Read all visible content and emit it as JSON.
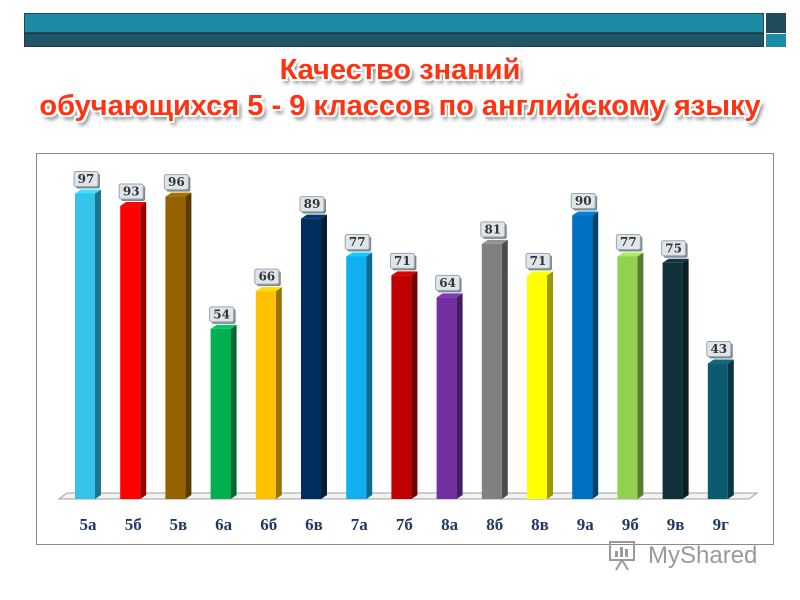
{
  "title_lines": [
    "Качество знаний",
    "обучающихся 5 - 9 классов по английскому языку"
  ],
  "watermark": "MyShared",
  "chart_data": {
    "type": "bar",
    "categories": [
      "5а",
      "5б",
      "5в",
      "6а",
      "6б",
      "6в",
      "7а",
      "7б",
      "8а",
      "8б",
      "8в",
      "9а",
      "9б",
      "9в",
      "9г"
    ],
    "values": [
      97,
      93,
      96,
      54,
      66,
      89,
      77,
      71,
      64,
      81,
      71,
      90,
      77,
      75,
      43
    ],
    "colors": [
      "#35c3ea",
      "#ff0000",
      "#946200",
      "#00b050",
      "#ffc000",
      "#002f5f",
      "#10b0f0",
      "#c00000",
      "#7030a0",
      "#808080",
      "#ffff00",
      "#0070c0",
      "#92d050",
      "#10303a",
      "#0d5a70"
    ],
    "ylim": [
      0,
      100
    ],
    "title": "",
    "xlabel": "",
    "ylabel": ""
  }
}
